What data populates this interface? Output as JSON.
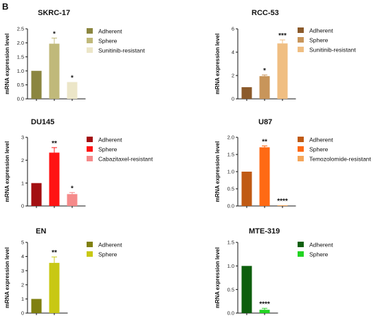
{
  "figure_label": "B",
  "chart_data": [
    {
      "type": "bar",
      "title": "SKRC-17",
      "ylabel": "mRNA expression level",
      "ylim": [
        0,
        2.5
      ],
      "yticks": [
        "0.0",
        "0.5",
        "1.0",
        "1.5",
        "2.0",
        "2.5"
      ],
      "categories": [
        "Adherent",
        "Sphere",
        "Sunitinib-resistant"
      ],
      "values": [
        1.0,
        1.97,
        0.6
      ],
      "errors": [
        0,
        0.2,
        0
      ],
      "significance": [
        "",
        "*",
        "*"
      ],
      "colors": [
        "#8b8640",
        "#c0b97a",
        "#ece6c8"
      ],
      "legend": "right"
    },
    {
      "type": "bar",
      "title": "RCC-53",
      "ylabel": "mRNA expression level",
      "ylim": [
        0,
        6
      ],
      "yticks": [
        "0",
        "2",
        "4",
        "6"
      ],
      "categories": [
        "Adherent",
        "Sphere",
        "Sunitinib-resistant"
      ],
      "values": [
        1.0,
        1.95,
        4.75
      ],
      "errors": [
        0,
        0.1,
        0.3
      ],
      "significance": [
        "",
        "*",
        "***"
      ],
      "colors": [
        "#8b5a2b",
        "#c8955a",
        "#f0be82"
      ],
      "legend": "right"
    },
    {
      "type": "bar",
      "title": "DU145",
      "ylabel": "mRNA expression level",
      "ylim": [
        0,
        3
      ],
      "yticks": [
        "0",
        "1",
        "2",
        "3"
      ],
      "categories": [
        "Adherent",
        "Sphere",
        "Cabazitaxel-resistant"
      ],
      "values": [
        1.0,
        2.33,
        0.52
      ],
      "errors": [
        0,
        0.22,
        0.07
      ],
      "significance": [
        "",
        "**",
        "*"
      ],
      "colors": [
        "#a30f12",
        "#ff1414",
        "#f58a8a"
      ],
      "legend": "right"
    },
    {
      "type": "bar",
      "title": "U87",
      "ylabel": "mRNA expression level",
      "ylim": [
        0,
        2.0
      ],
      "yticks": [
        "0.0",
        "0.5",
        "1.0",
        "1.5",
        "2.0"
      ],
      "categories": [
        "Adherent",
        "Sphere",
        "Temozolomide-resistant"
      ],
      "values": [
        1.0,
        1.71,
        0.02
      ],
      "errors": [
        0,
        0.04,
        0
      ],
      "significance": [
        "",
        "**",
        "****"
      ],
      "colors": [
        "#c05a14",
        "#ff6a14",
        "#f5a65a"
      ],
      "legend": "right"
    },
    {
      "type": "bar",
      "title": "EN",
      "ylabel": "mRNA expression level",
      "ylim": [
        0,
        5
      ],
      "yticks": [
        "0",
        "1",
        "2",
        "3",
        "4",
        "5"
      ],
      "categories": [
        "Adherent",
        "Sphere"
      ],
      "values": [
        1.0,
        3.55
      ],
      "errors": [
        0,
        0.42
      ],
      "significance": [
        "",
        "**"
      ],
      "colors": [
        "#808010",
        "#c8c814"
      ],
      "legend": "right"
    },
    {
      "type": "bar",
      "title": "MTE-319",
      "ylabel": "mRNA expression level",
      "ylim": [
        0,
        1.5
      ],
      "yticks": [
        "0.0",
        "0.5",
        "1.0",
        "1.5"
      ],
      "categories": [
        "Adherent",
        "Sphere"
      ],
      "values": [
        1.0,
        0.07
      ],
      "errors": [
        0,
        0.03
      ],
      "significance": [
        "",
        "****"
      ],
      "colors": [
        "#0e5f0e",
        "#22d422"
      ],
      "legend": "right"
    }
  ]
}
